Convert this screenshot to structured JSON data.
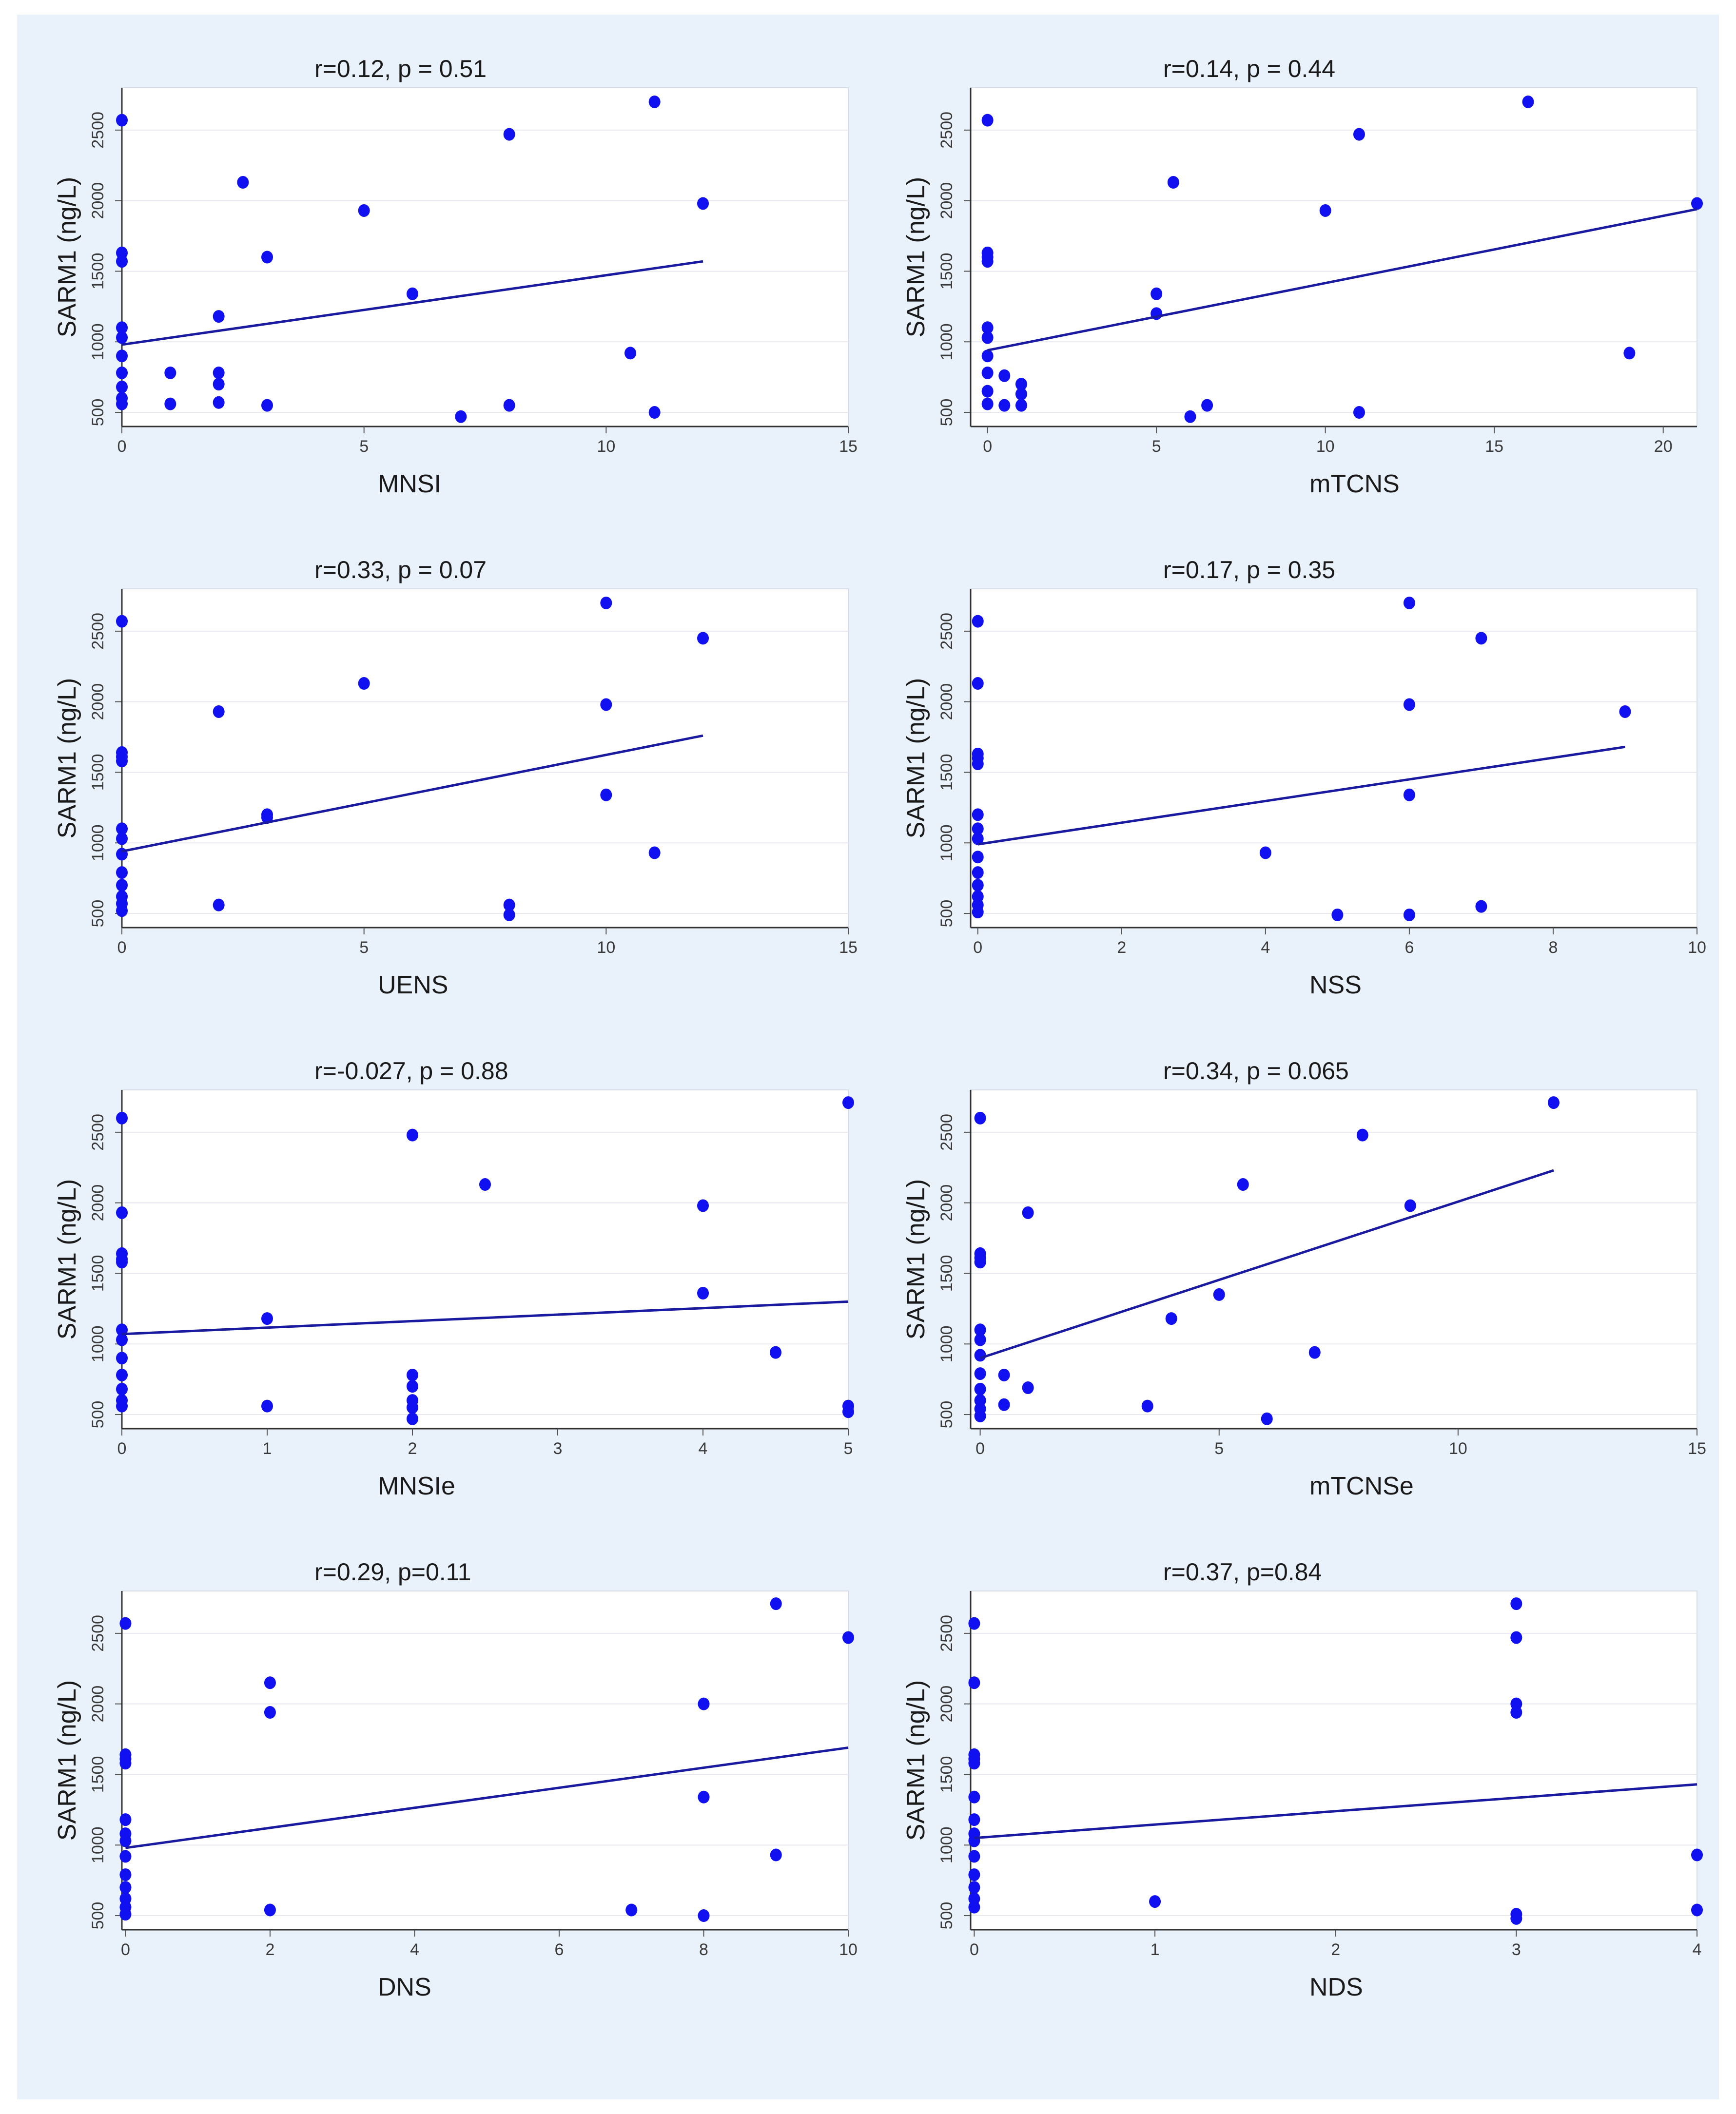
{
  "figure": {
    "background": "#e9f1fb",
    "plot_background": "#ffffff",
    "point_color": "#1010f0",
    "line_color": "#1a1aa0"
  },
  "chart_data": [
    {
      "type": "scatter",
      "title": "r=0.12, p = 0.51",
      "xlabel": "MNSI",
      "ylabel": "SARM1 (ng/L)",
      "xlim": [
        0,
        15
      ],
      "ylim": [
        400,
        2800
      ],
      "xticks": [
        0,
        5,
        10,
        15
      ],
      "yticks": [
        500,
        1000,
        1500,
        2000,
        2500
      ],
      "fit": {
        "x": [
          0,
          12
        ],
        "y": [
          980,
          1570
        ]
      },
      "points": [
        [
          0,
          2570
        ],
        [
          0,
          1630
        ],
        [
          0,
          1570
        ],
        [
          0,
          1100
        ],
        [
          0,
          1030
        ],
        [
          0,
          900
        ],
        [
          0,
          780
        ],
        [
          0,
          680
        ],
        [
          0,
          600
        ],
        [
          0,
          560
        ],
        [
          1,
          780
        ],
        [
          1,
          560
        ],
        [
          2,
          1180
        ],
        [
          2,
          780
        ],
        [
          2,
          700
        ],
        [
          2,
          570
        ],
        [
          2.5,
          2130
        ],
        [
          3,
          1600
        ],
        [
          3,
          550
        ],
        [
          5,
          1930
        ],
        [
          6,
          1340
        ],
        [
          7,
          470
        ],
        [
          8,
          2470
        ],
        [
          8,
          550
        ],
        [
          10.5,
          920
        ],
        [
          11,
          2700
        ],
        [
          11,
          500
        ],
        [
          12,
          1980
        ]
      ]
    },
    {
      "type": "scatter",
      "title": "r=0.14, p = 0.44",
      "xlabel": "mTCNS",
      "ylabel": "SARM1 (ng/L)",
      "xlim": [
        -0.5,
        21
      ],
      "ylim": [
        400,
        2800
      ],
      "xticks": [
        0,
        5,
        10,
        15,
        20
      ],
      "yticks": [
        500,
        1000,
        1500,
        2000,
        2500
      ],
      "fit": {
        "x": [
          0,
          21
        ],
        "y": [
          940,
          1940
        ]
      },
      "points": [
        [
          0,
          2570
        ],
        [
          0,
          1630
        ],
        [
          0,
          1600
        ],
        [
          0,
          1570
        ],
        [
          0,
          1100
        ],
        [
          0,
          1030
        ],
        [
          0,
          900
        ],
        [
          0,
          780
        ],
        [
          0,
          650
        ],
        [
          0,
          560
        ],
        [
          0.5,
          760
        ],
        [
          0.5,
          550
        ],
        [
          1,
          700
        ],
        [
          1,
          630
        ],
        [
          1,
          550
        ],
        [
          5,
          1340
        ],
        [
          5,
          1200
        ],
        [
          5.5,
          2130
        ],
        [
          6,
          470
        ],
        [
          6.5,
          550
        ],
        [
          10,
          1930
        ],
        [
          11,
          2470
        ],
        [
          11,
          500
        ],
        [
          16,
          2700
        ],
        [
          19,
          920
        ],
        [
          21,
          1980
        ]
      ]
    },
    {
      "type": "scatter",
      "title": "r=0.33, p = 0.07",
      "xlabel": "UENS",
      "ylabel": "SARM1 (ng/L)",
      "xlim": [
        0,
        15
      ],
      "ylim": [
        400,
        2800
      ],
      "xticks": [
        0,
        5,
        10,
        15
      ],
      "yticks": [
        500,
        1000,
        1500,
        2000,
        2500
      ],
      "fit": {
        "x": [
          0,
          12
        ],
        "y": [
          940,
          1760
        ]
      },
      "points": [
        [
          0,
          2570
        ],
        [
          0,
          1640
        ],
        [
          0,
          1610
        ],
        [
          0,
          1580
        ],
        [
          0,
          1100
        ],
        [
          0,
          1030
        ],
        [
          0,
          920
        ],
        [
          0,
          790
        ],
        [
          0,
          700
        ],
        [
          0,
          620
        ],
        [
          0,
          570
        ],
        [
          0,
          520
        ],
        [
          2,
          1930
        ],
        [
          2,
          560
        ],
        [
          3,
          1200
        ],
        [
          3,
          1180
        ],
        [
          5,
          2130
        ],
        [
          8,
          560
        ],
        [
          8,
          490
        ],
        [
          10,
          2700
        ],
        [
          10,
          1980
        ],
        [
          10,
          1340
        ],
        [
          11,
          930
        ],
        [
          12,
          2450
        ]
      ]
    },
    {
      "type": "scatter",
      "title": "r=0.17, p = 0.35",
      "xlabel": "NSS",
      "ylabel": "SARM1 (ng/L)",
      "xlim": [
        -0.1,
        10
      ],
      "ylim": [
        400,
        2800
      ],
      "xticks": [
        0,
        2,
        4,
        6,
        8,
        10
      ],
      "yticks": [
        500,
        1000,
        1500,
        2000,
        2500
      ],
      "fit": {
        "x": [
          0,
          9
        ],
        "y": [
          990,
          1680
        ]
      },
      "points": [
        [
          0,
          2570
        ],
        [
          0,
          2130
        ],
        [
          0,
          1630
        ],
        [
          0,
          1600
        ],
        [
          0,
          1560
        ],
        [
          0,
          1200
        ],
        [
          0,
          1100
        ],
        [
          0,
          1030
        ],
        [
          0,
          900
        ],
        [
          0,
          790
        ],
        [
          0,
          700
        ],
        [
          0,
          620
        ],
        [
          0,
          560
        ],
        [
          0,
          510
        ],
        [
          4,
          930
        ],
        [
          5,
          490
        ],
        [
          6,
          2700
        ],
        [
          6,
          1980
        ],
        [
          6,
          1340
        ],
        [
          6,
          490
        ],
        [
          7,
          2450
        ],
        [
          7,
          550
        ],
        [
          9,
          1930
        ]
      ]
    },
    {
      "type": "scatter",
      "title": "r=-0.027, p = 0.88",
      "xlabel": "MNSIe",
      "ylabel": "SARM1 (ng/L)",
      "xlim": [
        0,
        5
      ],
      "ylim": [
        400,
        2800
      ],
      "xticks": [
        0,
        1,
        2,
        3,
        4,
        5
      ],
      "yticks": [
        500,
        1000,
        1500,
        2000,
        2500
      ],
      "fit": {
        "x": [
          0,
          5
        ],
        "y": [
          1070,
          1300
        ]
      },
      "points": [
        [
          0,
          2600
        ],
        [
          0,
          1930
        ],
        [
          0,
          1640
        ],
        [
          0,
          1600
        ],
        [
          0,
          1580
        ],
        [
          0,
          1100
        ],
        [
          0,
          1030
        ],
        [
          0,
          900
        ],
        [
          0,
          780
        ],
        [
          0,
          680
        ],
        [
          0,
          600
        ],
        [
          0,
          560
        ],
        [
          1,
          1180
        ],
        [
          1,
          560
        ],
        [
          2,
          2480
        ],
        [
          2,
          780
        ],
        [
          2,
          700
        ],
        [
          2,
          600
        ],
        [
          2,
          550
        ],
        [
          2,
          470
        ],
        [
          2.5,
          2130
        ],
        [
          4,
          1980
        ],
        [
          4,
          1360
        ],
        [
          4.5,
          940
        ],
        [
          5,
          2710
        ],
        [
          5,
          560
        ],
        [
          5,
          520
        ]
      ]
    },
    {
      "type": "scatter",
      "title": "r=0.34, p = 0.065",
      "xlabel": "mTCNSe",
      "ylabel": "SARM1 (ng/L)",
      "xlim": [
        -0.2,
        15
      ],
      "ylim": [
        400,
        2800
      ],
      "xticks": [
        0,
        5,
        10,
        15
      ],
      "yticks": [
        500,
        1000,
        1500,
        2000,
        2500
      ],
      "fit": {
        "x": [
          0,
          12
        ],
        "y": [
          900,
          2230
        ]
      },
      "points": [
        [
          0,
          2600
        ],
        [
          0,
          1640
        ],
        [
          0,
          1610
        ],
        [
          0,
          1580
        ],
        [
          0,
          1100
        ],
        [
          0,
          1030
        ],
        [
          0,
          920
        ],
        [
          0,
          790
        ],
        [
          0,
          680
        ],
        [
          0,
          600
        ],
        [
          0,
          540
        ],
        [
          0,
          490
        ],
        [
          0.5,
          780
        ],
        [
          0.5,
          570
        ],
        [
          1,
          1930
        ],
        [
          1,
          690
        ],
        [
          3.5,
          560
        ],
        [
          4,
          1180
        ],
        [
          5,
          1350
        ],
        [
          5.5,
          2130
        ],
        [
          6,
          470
        ],
        [
          7,
          940
        ],
        [
          8,
          2480
        ],
        [
          9,
          1980
        ],
        [
          12,
          2710
        ]
      ]
    },
    {
      "type": "scatter",
      "title": "r=0.29, p=0.11",
      "xlabel": "DNS",
      "ylabel": "SARM1 (ng/L)",
      "xlim": [
        -0.05,
        10
      ],
      "ylim": [
        400,
        2800
      ],
      "xticks": [
        0,
        2,
        4,
        6,
        8,
        10
      ],
      "yticks": [
        500,
        1000,
        1500,
        2000,
        2500
      ],
      "fit": {
        "x": [
          0,
          10
        ],
        "y": [
          980,
          1690
        ]
      },
      "points": [
        [
          0,
          2570
        ],
        [
          0,
          1640
        ],
        [
          0,
          1610
        ],
        [
          0,
          1580
        ],
        [
          0,
          1180
        ],
        [
          0,
          1080
        ],
        [
          0,
          1030
        ],
        [
          0,
          920
        ],
        [
          0,
          790
        ],
        [
          0,
          700
        ],
        [
          0,
          620
        ],
        [
          0,
          560
        ],
        [
          0,
          510
        ],
        [
          2,
          2150
        ],
        [
          2,
          1940
        ],
        [
          2,
          540
        ],
        [
          7,
          540
        ],
        [
          8,
          2000
        ],
        [
          8,
          1340
        ],
        [
          8,
          500
        ],
        [
          9,
          2710
        ],
        [
          9,
          930
        ],
        [
          10,
          2470
        ]
      ]
    },
    {
      "type": "scatter",
      "title": "r=0.37, p=0.84",
      "xlabel": "NDS",
      "ylabel": "SARM1 (ng/L)",
      "xlim": [
        -0.02,
        4
      ],
      "ylim": [
        400,
        2800
      ],
      "xticks": [
        0,
        1,
        2,
        3,
        4
      ],
      "yticks": [
        500,
        1000,
        1500,
        2000,
        2500
      ],
      "fit": {
        "x": [
          0,
          4
        ],
        "y": [
          1050,
          1430
        ]
      },
      "points": [
        [
          0,
          2570
        ],
        [
          0,
          2150
        ],
        [
          0,
          1640
        ],
        [
          0,
          1610
        ],
        [
          0,
          1580
        ],
        [
          0,
          1340
        ],
        [
          0,
          1180
        ],
        [
          0,
          1080
        ],
        [
          0,
          1030
        ],
        [
          0,
          920
        ],
        [
          0,
          790
        ],
        [
          0,
          700
        ],
        [
          0,
          620
        ],
        [
          0,
          560
        ],
        [
          1,
          600
        ],
        [
          3,
          2710
        ],
        [
          3,
          2470
        ],
        [
          3,
          2000
        ],
        [
          3,
          1940
        ],
        [
          3,
          510
        ],
        [
          3,
          480
        ],
        [
          4,
          930
        ],
        [
          4,
          540
        ]
      ]
    }
  ]
}
